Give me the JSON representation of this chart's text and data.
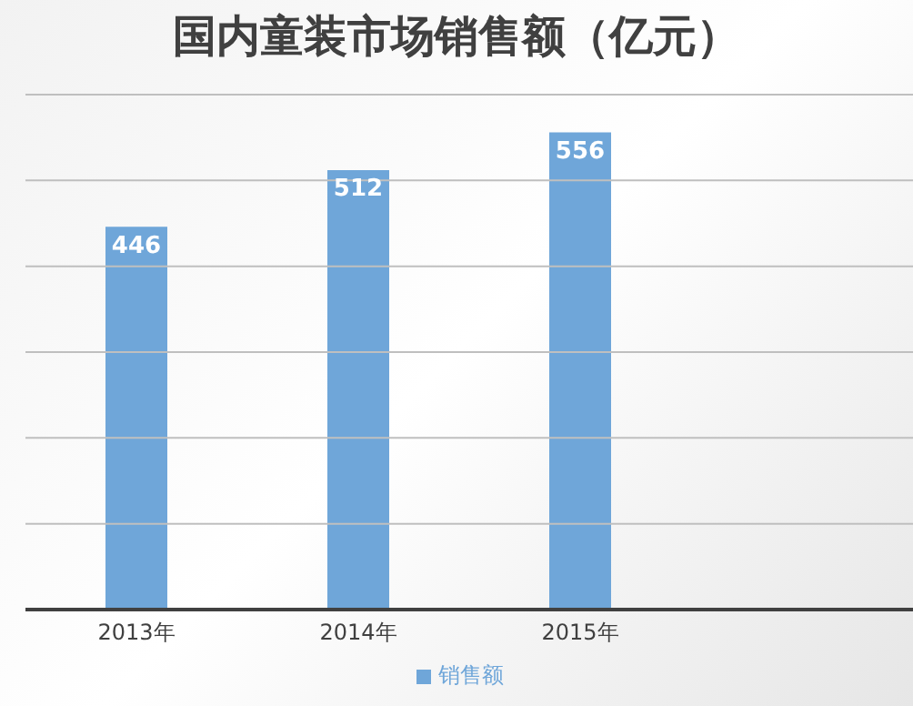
{
  "chart_data": {
    "type": "bar",
    "title": "国内童装市场销售额（亿元）",
    "categories": [
      "2013年",
      "2014年",
      "2015年",
      null
    ],
    "series": [
      {
        "name": "销售额",
        "color": "#6fa6d9",
        "values": [
          446,
          512,
          556,
          null
        ]
      }
    ],
    "ylim": [
      0,
      600
    ],
    "yticks": [
      {
        "value": 0,
        "label": null
      },
      {
        "value": 100,
        "label": null
      },
      {
        "value": 200,
        "label": null
      },
      {
        "value": 300,
        "label": null
      },
      {
        "value": 400,
        "label": null
      },
      {
        "value": 500,
        "label": null
      },
      {
        "value": 600,
        "label": null
      }
    ],
    "tick_labels": "x",
    "grid": "y",
    "legend": "bottom",
    "data_labels": true
  }
}
